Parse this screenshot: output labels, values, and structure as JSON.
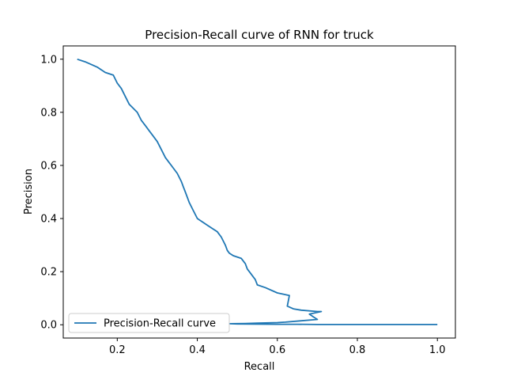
{
  "chart_data": {
    "type": "line",
    "title": "Precision-Recall curve of RNN for truck",
    "xlabel": "Recall",
    "ylabel": "Precision",
    "xlim": [
      0.065,
      1.045
    ],
    "ylim": [
      -0.05,
      1.05
    ],
    "xticks": [
      0.2,
      0.4,
      0.6,
      0.8,
      1.0
    ],
    "xtick_labels": [
      "0.2",
      "0.4",
      "0.6",
      "0.8",
      "1.0"
    ],
    "yticks": [
      0.0,
      0.2,
      0.4,
      0.6,
      0.8,
      1.0
    ],
    "ytick_labels": [
      "0.0",
      "0.2",
      "0.4",
      "0.6",
      "0.8",
      "1.0"
    ],
    "grid": false,
    "legend_location": "lower left",
    "line_color": "#1f77b4",
    "series": [
      {
        "name": "Precision-Recall curve",
        "x": [
          0.1,
          0.12,
          0.15,
          0.17,
          0.19,
          0.2,
          0.21,
          0.22,
          0.23,
          0.25,
          0.26,
          0.27,
          0.28,
          0.29,
          0.3,
          0.31,
          0.32,
          0.33,
          0.335,
          0.35,
          0.36,
          0.365,
          0.37,
          0.375,
          0.38,
          0.39,
          0.4,
          0.41,
          0.43,
          0.45,
          0.46,
          0.47,
          0.475,
          0.48,
          0.49,
          0.51,
          0.52,
          0.525,
          0.53,
          0.545,
          0.55,
          0.57,
          0.6,
          0.63,
          0.625,
          0.64,
          0.66,
          0.7,
          0.71,
          0.68,
          0.69,
          0.7,
          0.66,
          0.62,
          0.6,
          0.55,
          0.52,
          0.48,
          0.5,
          0.6,
          0.65,
          0.7,
          0.8,
          0.9,
          1.0
        ],
        "y": [
          1.0,
          0.99,
          0.97,
          0.95,
          0.94,
          0.91,
          0.89,
          0.86,
          0.83,
          0.8,
          0.77,
          0.75,
          0.73,
          0.71,
          0.69,
          0.66,
          0.63,
          0.61,
          0.6,
          0.57,
          0.54,
          0.52,
          0.5,
          0.48,
          0.46,
          0.43,
          0.4,
          0.39,
          0.37,
          0.35,
          0.33,
          0.3,
          0.28,
          0.27,
          0.26,
          0.25,
          0.23,
          0.21,
          0.2,
          0.17,
          0.15,
          0.14,
          0.12,
          0.11,
          0.07,
          0.06,
          0.055,
          0.05,
          0.05,
          0.04,
          0.03,
          0.02,
          0.015,
          0.01,
          0.008,
          0.006,
          0.005,
          0.004,
          0.003,
          0.002,
          0.002,
          0.001,
          0.001,
          0.001,
          0.001
        ]
      }
    ]
  }
}
